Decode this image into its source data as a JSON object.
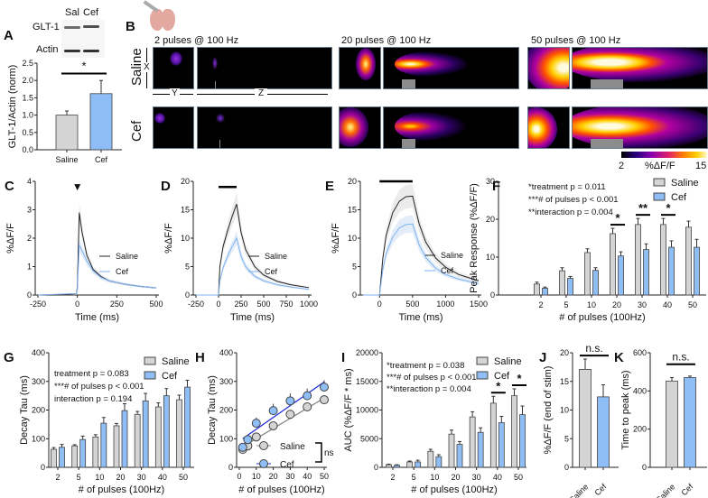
{
  "panel_a_blot": {
    "letter": "A",
    "lanes": [
      "Sal",
      "Cef"
    ],
    "rows": [
      "GLT-1",
      "Actin"
    ]
  },
  "panel_b": {
    "letter": "B",
    "conditions": [
      "2 pulses @ 100 Hz",
      "20 pulses @ 100 Hz",
      "50 pulses @ 100 Hz"
    ],
    "rows": [
      "Saline",
      "Cef"
    ],
    "axes": {
      "x": "X",
      "y": "Y",
      "z": "Z"
    },
    "colorbar": {
      "min": "2",
      "label": "%ΔF/F",
      "max": "15"
    }
  },
  "colors": {
    "saline": "#d4d4d4",
    "cef": "#8fbdf5",
    "saline_line": "#222222",
    "cef_line": "#7fb2ef",
    "cef_fit": "#1f2bdc",
    "saline_fit": "#8a8a8a"
  },
  "chart_data": [
    {
      "panel": "A",
      "type": "bar",
      "categories": [
        "Saline",
        "Cef"
      ],
      "values": [
        1.0,
        1.62
      ],
      "errors": [
        0.12,
        0.38
      ],
      "ylabel": "GLT-1/Actin (norm)",
      "xlabel": "",
      "ylim": [
        0,
        2.5
      ],
      "yticks": [
        "0.0",
        "0.5",
        "1.0",
        "1.5",
        "2.0",
        "2.5"
      ],
      "sig": [
        {
          "from": 0,
          "to": 1,
          "label": "*",
          "y": 2.2
        }
      ]
    },
    {
      "panel": "C",
      "type": "line",
      "xlabel": "Time (ms)",
      "ylabel": "%ΔF/F",
      "xlim": [
        -250,
        500
      ],
      "ylim": [
        0,
        4
      ],
      "xticks": [
        "-250",
        "0",
        "250",
        "500"
      ],
      "yticks": [
        "0",
        "1",
        "2",
        "3",
        "4"
      ],
      "stim_marker": "▼",
      "stim_time": 0,
      "series": [
        {
          "name": "Saline",
          "points": [
            [
              -250,
              0
            ],
            [
              -100,
              0.02
            ],
            [
              -5,
              0.05
            ],
            [
              0,
              0.3
            ],
            [
              12,
              2.9
            ],
            [
              30,
              2.2
            ],
            [
              60,
              1.4
            ],
            [
              100,
              0.9
            ],
            [
              150,
              0.65
            ],
            [
              200,
              0.5
            ],
            [
              300,
              0.38
            ],
            [
              400,
              0.3
            ],
            [
              500,
              0.25
            ]
          ]
        },
        {
          "name": "Cef",
          "points": [
            [
              -250,
              0
            ],
            [
              -100,
              0.03
            ],
            [
              -5,
              0.05
            ],
            [
              0,
              0.2
            ],
            [
              12,
              1.75
            ],
            [
              30,
              1.55
            ],
            [
              60,
              1.2
            ],
            [
              100,
              0.85
            ],
            [
              150,
              0.62
            ],
            [
              200,
              0.5
            ],
            [
              300,
              0.38
            ],
            [
              400,
              0.3
            ],
            [
              500,
              0.25
            ]
          ]
        }
      ]
    },
    {
      "panel": "D",
      "type": "line",
      "xlabel": "Time (ms)",
      "ylabel": "%ΔF/F",
      "xlim": [
        -250,
        1000
      ],
      "ylim": [
        0,
        20
      ],
      "xticks": [
        "-250",
        "0",
        "250",
        "500",
        "750",
        "1000"
      ],
      "yticks": [
        "0",
        "5",
        "10",
        "15",
        "20"
      ],
      "stim_window": [
        0,
        200
      ],
      "stim_level": 19,
      "series": [
        {
          "name": "Saline",
          "points": [
            [
              -250,
              0
            ],
            [
              0,
              0
            ],
            [
              15,
              5
            ],
            [
              50,
              8.5
            ],
            [
              100,
              11.3
            ],
            [
              150,
              13.8
            ],
            [
              200,
              16
            ],
            [
              250,
              11
            ],
            [
              300,
              8
            ],
            [
              400,
              5
            ],
            [
              500,
              3.5
            ],
            [
              650,
              2.4
            ],
            [
              800,
              1.8
            ],
            [
              1000,
              1.3
            ]
          ]
        },
        {
          "name": "Cef",
          "points": [
            [
              -250,
              0
            ],
            [
              0,
              0
            ],
            [
              15,
              2.5
            ],
            [
              50,
              4.8
            ],
            [
              100,
              6.8
            ],
            [
              150,
              8.5
            ],
            [
              200,
              10
            ],
            [
              250,
              6.8
            ],
            [
              300,
              5
            ],
            [
              400,
              3.3
            ],
            [
              500,
              2.5
            ],
            [
              650,
              1.8
            ],
            [
              800,
              1.4
            ],
            [
              1000,
              1.0
            ]
          ]
        }
      ]
    },
    {
      "panel": "E",
      "type": "line",
      "xlabel": "Time (ms)",
      "ylabel": "%ΔF/F",
      "xlim": [
        -250,
        1500
      ],
      "ylim": [
        0,
        20
      ],
      "xticks": [
        "0",
        "500",
        "1000",
        "1500"
      ],
      "xtick_values": [
        0,
        500,
        1000,
        1500
      ],
      "yticks": [
        "0",
        "5",
        "10",
        "15",
        "20"
      ],
      "stim_window": [
        0,
        500
      ],
      "stim_level": 20,
      "series": [
        {
          "name": "Saline",
          "points": [
            [
              -250,
              0
            ],
            [
              0,
              0
            ],
            [
              50,
              6.5
            ],
            [
              100,
              10.5
            ],
            [
              200,
              14.5
            ],
            [
              300,
              16.5
            ],
            [
              400,
              17.3
            ],
            [
              500,
              17.4
            ],
            [
              600,
              12.5
            ],
            [
              700,
              9.3
            ],
            [
              850,
              6.5
            ],
            [
              1000,
              4.9
            ],
            [
              1200,
              3.6
            ],
            [
              1500,
              2.5
            ]
          ]
        },
        {
          "name": "Cef",
          "points": [
            [
              -250,
              0
            ],
            [
              0,
              0
            ],
            [
              50,
              4.5
            ],
            [
              100,
              7.3
            ],
            [
              200,
              10.2
            ],
            [
              300,
              11.8
            ],
            [
              400,
              12.4
            ],
            [
              500,
              12.5
            ],
            [
              600,
              8.8
            ],
            [
              700,
              6.6
            ],
            [
              850,
              4.7
            ],
            [
              1000,
              3.6
            ],
            [
              1200,
              2.8
            ],
            [
              1500,
              2.0
            ]
          ]
        }
      ]
    },
    {
      "panel": "F",
      "type": "bar",
      "xlabel": "# of pulses (100Hz)",
      "ylabel": "Peak Response (%ΔF/F)",
      "ylim": [
        0,
        30
      ],
      "categories": [
        "2",
        "5",
        "10",
        "20",
        "30",
        "40",
        "50"
      ],
      "yticks": [
        "0",
        "10",
        "20",
        "30"
      ],
      "series": [
        {
          "name": "Saline",
          "values": [
            2.9,
            6.4,
            11.2,
            16.2,
            18.6,
            18.6,
            17.9
          ],
          "errors": [
            0.5,
            0.8,
            1.0,
            1.4,
            1.6,
            1.6,
            1.6
          ]
        },
        {
          "name": "Cef",
          "values": [
            1.8,
            4.4,
            6.5,
            10.3,
            12.0,
            12.6,
            12.6
          ],
          "errors": [
            0.3,
            0.5,
            0.7,
            1.1,
            1.5,
            1.7,
            2.1
          ]
        }
      ],
      "annotations": [
        "*treatment p = 0.011",
        "***# of pulses p < 0.001",
        "**interaction p = 0.004"
      ],
      "sig": [
        {
          "cat": 3,
          "label": "*"
        },
        {
          "cat": 4,
          "label": "**"
        },
        {
          "cat": 5,
          "label": "*"
        }
      ]
    },
    {
      "panel": "G",
      "type": "bar",
      "xlabel": "# of pulses (100Hz)",
      "ylabel": "Decay Tau (ms)",
      "ylim": [
        0,
        400
      ],
      "categories": [
        "2",
        "5",
        "10",
        "20",
        "30",
        "40",
        "50"
      ],
      "yticks": [
        "0",
        "100",
        "200",
        "300",
        "400"
      ],
      "series": [
        {
          "name": "Saline",
          "values": [
            63,
            75,
            106,
            145,
            185,
            211,
            236
          ],
          "errors": [
            6,
            4,
            8,
            8,
            10,
            14,
            16
          ]
        },
        {
          "name": "Cef",
          "values": [
            70,
            97,
            154,
            198,
            232,
            250,
            280
          ],
          "errors": [
            10,
            12,
            20,
            24,
            26,
            25,
            24
          ]
        }
      ],
      "annotations": [
        "treatment p = 0.083",
        "***# of pulses p < 0.001",
        "interaction p = 0.194"
      ]
    },
    {
      "panel": "H",
      "type": "scatter",
      "xlabel": "# of pulses (100Hz)",
      "ylabel": "Decay Tau (ms)",
      "xlim": [
        0,
        50
      ],
      "ylim": [
        0,
        400
      ],
      "xticks": [
        "0",
        "10",
        "20",
        "30",
        "40",
        "50"
      ],
      "yticks": [
        "0",
        "100",
        "200",
        "300",
        "400"
      ],
      "series": [
        {
          "name": "Saline",
          "x": [
            2,
            5,
            10,
            20,
            30,
            40,
            50
          ],
          "y": [
            63,
            75,
            106,
            145,
            185,
            211,
            236
          ],
          "errors": [
            6,
            4,
            8,
            8,
            10,
            14,
            16
          ],
          "fit": [
            [
              2,
              72
            ],
            [
              50,
              242
            ]
          ]
        },
        {
          "name": "Cef",
          "x": [
            2,
            5,
            10,
            20,
            30,
            40,
            50
          ],
          "y": [
            70,
            97,
            154,
            198,
            232,
            250,
            280
          ],
          "errors": [
            10,
            12,
            20,
            24,
            26,
            25,
            24
          ],
          "fit": [
            [
              2,
              100
            ],
            [
              50,
              298
            ]
          ]
        }
      ],
      "sig_label": "ns"
    },
    {
      "panel": "I",
      "type": "bar",
      "xlabel": "# of pulses (100Hz)",
      "ylabel": "AUC (%ΔF/F * ms)",
      "ylim": [
        0,
        20000
      ],
      "categories": [
        "2",
        "5",
        "10",
        "20",
        "30",
        "40",
        "50"
      ],
      "yticks": [
        "0",
        "5000",
        "10000",
        "15000",
        "20000"
      ],
      "series": [
        {
          "name": "Saline",
          "values": [
            450,
            950,
            2800,
            5800,
            8800,
            11200,
            12500
          ],
          "errors": [
            100,
            150,
            350,
            700,
            900,
            1200,
            1200
          ]
        },
        {
          "name": "Cef",
          "values": [
            350,
            950,
            1850,
            4000,
            6100,
            7800,
            9200
          ],
          "errors": [
            100,
            300,
            350,
            500,
            800,
            1100,
            1500
          ]
        }
      ],
      "annotations": [
        "*treatment p = 0.038",
        "***# of pulses p < 0.001",
        "**interaction p = 0.004"
      ],
      "sig": [
        {
          "cat": 5,
          "label": "*"
        },
        {
          "cat": 6,
          "label": "*"
        }
      ]
    },
    {
      "panel": "J",
      "type": "bar",
      "categories": [
        "Saline",
        "Cef"
      ],
      "values": [
        17.1,
        12.3
      ],
      "errors": [
        1.8,
        2.1
      ],
      "ylabel": "%ΔF/F (end of stim)",
      "xlabel": "",
      "ylim": [
        0,
        20
      ],
      "yticks": [
        "0",
        "5",
        "10",
        "15",
        "20"
      ],
      "sig": [
        {
          "from": 0,
          "to": 1,
          "label": "n.s.",
          "y": 19.5
        }
      ]
    },
    {
      "panel": "K",
      "type": "bar",
      "categories": [
        "Saline",
        "Cef"
      ],
      "values": [
        452,
        470
      ],
      "errors": [
        18,
        8
      ],
      "ylabel": "Time to peak (ms)",
      "xlabel": "",
      "ylim": [
        0,
        600
      ],
      "yticks": [
        "0",
        "200",
        "400",
        "600"
      ],
      "sig": [
        {
          "from": 0,
          "to": 1,
          "label": "n.s.",
          "y": 540
        }
      ]
    }
  ]
}
